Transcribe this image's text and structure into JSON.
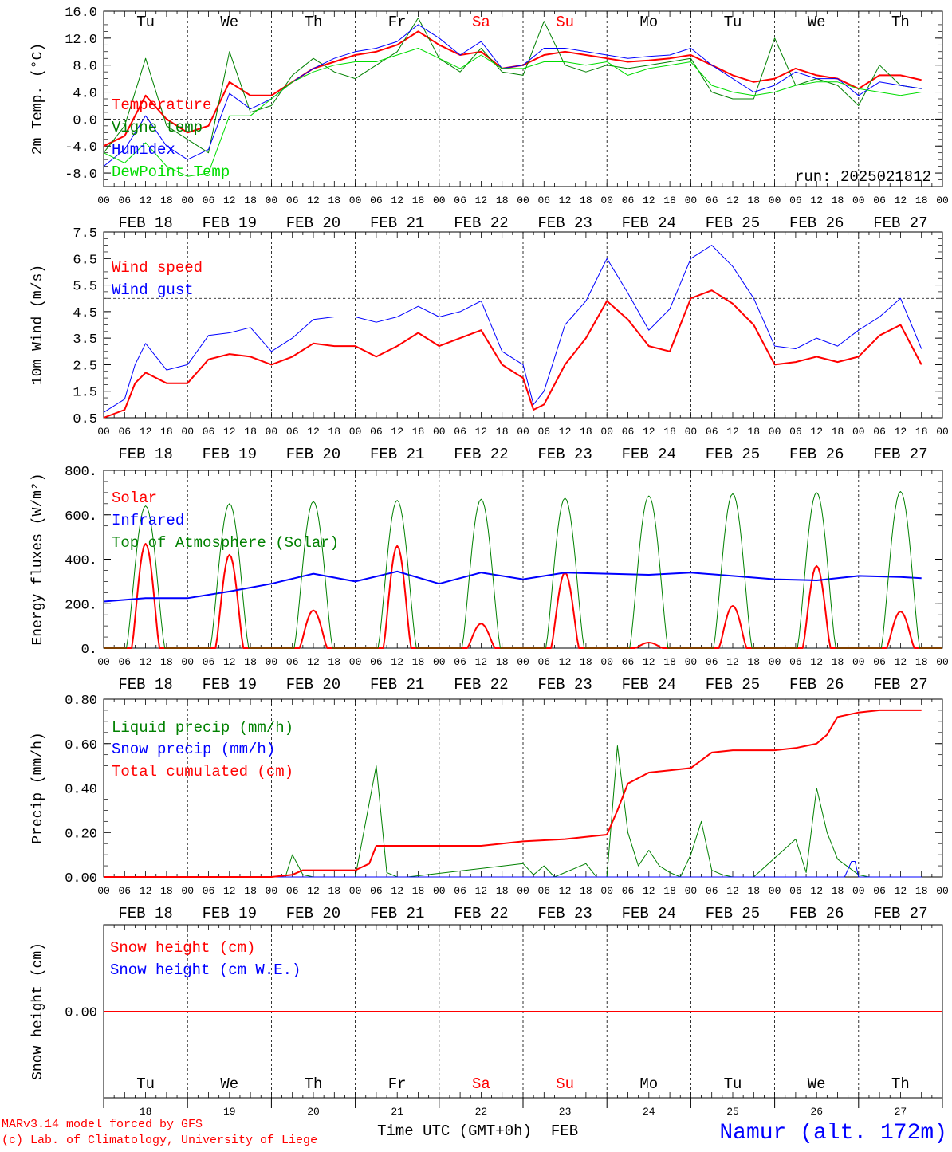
{
  "colors": {
    "red": "#ff0000",
    "green": "#008000",
    "blue": "#0000ff",
    "lime": "#00dd00",
    "grid": "#000000",
    "weekend": "#ff0000"
  },
  "days": [
    {
      "abbr": "Tu",
      "date": "FEB 18",
      "num": "18",
      "weekend": false
    },
    {
      "abbr": "We",
      "date": "FEB 19",
      "num": "19",
      "weekend": false
    },
    {
      "abbr": "Th",
      "date": "FEB 20",
      "num": "20",
      "weekend": false
    },
    {
      "abbr": "Fr",
      "date": "FEB 21",
      "num": "21",
      "weekend": false
    },
    {
      "abbr": "Sa",
      "date": "FEB 22",
      "num": "22",
      "weekend": true
    },
    {
      "abbr": "Su",
      "date": "FEB 23",
      "num": "23",
      "weekend": true
    },
    {
      "abbr": "Mo",
      "date": "FEB 24",
      "num": "24",
      "weekend": false
    },
    {
      "abbr": "Tu",
      "date": "FEB 25",
      "num": "25",
      "weekend": false
    },
    {
      "abbr": "We",
      "date": "FEB 26",
      "num": "26",
      "weekend": false
    },
    {
      "abbr": "Th",
      "date": "FEB 27",
      "num": "27",
      "weekend": false
    }
  ],
  "hour_ticks": [
    "00",
    "06",
    "12",
    "18"
  ],
  "final_hour_tick": "00",
  "run_label": "run: 2025021812",
  "footer": {
    "credit_line1": "MARv3.14 model forced by GFS",
    "credit_line2": "(c) Lab. of Climatology, University of Liege",
    "time_axis_label": "Time UTC (GMT+0h)",
    "month": "FEB",
    "station": "Namur (alt. 172m)"
  },
  "chart_data": [
    {
      "type": "line",
      "ylabel": "2m Temp. (°C)",
      "ylim": [
        -10,
        16
      ],
      "yticks": [
        "16.0",
        "12.0",
        "8.0",
        "4.0",
        "0.0",
        "-4.0",
        "-8.0"
      ],
      "ytick_values": [
        16,
        12,
        8,
        4,
        0,
        -4,
        -8
      ],
      "reference_line": 0,
      "x_unit": "hours since FEB 18 00 UTC",
      "series": [
        {
          "name": "Temperature",
          "color": "#ff0000",
          "width": 2,
          "x": [
            0,
            6,
            12,
            18,
            24,
            30,
            36,
            42,
            48,
            54,
            60,
            66,
            72,
            78,
            84,
            90,
            96,
            102,
            108,
            114,
            120,
            126,
            132,
            138,
            144,
            150,
            156,
            162,
            168,
            174,
            180,
            186,
            192,
            198,
            204,
            210,
            216,
            222,
            228,
            234
          ],
          "y": [
            -4,
            -2.5,
            3.5,
            0,
            -2,
            -1,
            5.5,
            3.5,
            3.5,
            5.5,
            7.5,
            8.5,
            9.5,
            10,
            11,
            13,
            11,
            9.5,
            10,
            7.5,
            8,
            9.5,
            10,
            9.5,
            9,
            8.5,
            8.7,
            9,
            9.5,
            8,
            6.5,
            5.5,
            6,
            7.5,
            6.5,
            6,
            4.5,
            6.5,
            6.5,
            5.8
          ]
        },
        {
          "name": "Vigne temp",
          "color": "#008000",
          "width": 1,
          "x": [
            0,
            6,
            12,
            18,
            24,
            30,
            36,
            42,
            48,
            54,
            60,
            66,
            72,
            78,
            84,
            90,
            96,
            102,
            108,
            114,
            120,
            126,
            132,
            138,
            144,
            150,
            156,
            162,
            168,
            174,
            180,
            186,
            192,
            198,
            204,
            210,
            216,
            222,
            228,
            234
          ],
          "y": [
            -5,
            -1,
            9,
            -1,
            -3,
            -5,
            10,
            1,
            2,
            6.5,
            9,
            7,
            6,
            8,
            10,
            15,
            9,
            7,
            10.5,
            7,
            6.5,
            14.5,
            8,
            7,
            8,
            7.5,
            8,
            8.5,
            9,
            4,
            3,
            3,
            12,
            5,
            6,
            5,
            2,
            8,
            5,
            4.5
          ]
        },
        {
          "name": "Humidex",
          "color": "#0000ff",
          "width": 1,
          "x": [
            0,
            6,
            12,
            18,
            24,
            30,
            36,
            42,
            48,
            54,
            60,
            66,
            72,
            78,
            84,
            90,
            96,
            102,
            108,
            114,
            120,
            126,
            132,
            138,
            144,
            150,
            156,
            162,
            168,
            174,
            180,
            186,
            192,
            198,
            204,
            210,
            216,
            222,
            228,
            234
          ],
          "y": [
            -7,
            -4.5,
            0.5,
            -4,
            -6,
            -4.5,
            3.8,
            1.5,
            3,
            5.5,
            7.5,
            9,
            10,
            10.5,
            11.5,
            14,
            12,
            9.5,
            11.5,
            7.5,
            8,
            10.5,
            10.5,
            10,
            9.5,
            9,
            9.3,
            9.5,
            10.5,
            8,
            6,
            4,
            5,
            7,
            6,
            6,
            3.5,
            5.5,
            5,
            4.5
          ]
        },
        {
          "name": "DewPoint Temp",
          "color": "#00dd00",
          "width": 1,
          "x": [
            0,
            6,
            12,
            18,
            24,
            30,
            36,
            42,
            48,
            54,
            60,
            66,
            72,
            78,
            84,
            90,
            96,
            102,
            108,
            114,
            120,
            126,
            132,
            138,
            144,
            150,
            156,
            162,
            168,
            174,
            180,
            186,
            192,
            198,
            204,
            210,
            216,
            222,
            228,
            234
          ],
          "y": [
            -5,
            -6.5,
            -3.5,
            -7,
            -8.5,
            -8,
            0.5,
            0.5,
            3,
            5.5,
            7,
            8,
            8.5,
            8.5,
            9.5,
            10.5,
            9,
            7.5,
            9.5,
            7.5,
            7.5,
            8.5,
            8.5,
            8,
            8.5,
            6.5,
            7.5,
            8,
            8.5,
            5,
            4,
            3.5,
            4,
            5,
            5.5,
            5.5,
            4.5,
            4,
            3.5,
            4
          ]
        }
      ]
    },
    {
      "type": "line",
      "ylabel": "10m Wind (m/s)",
      "ylim": [
        0.5,
        7.5
      ],
      "yticks": [
        "7.5",
        "6.5",
        "5.5",
        "4.5",
        "3.5",
        "2.5",
        "1.5",
        "0.5"
      ],
      "ytick_values": [
        7.5,
        6.5,
        5.5,
        4.5,
        3.5,
        2.5,
        1.5,
        0.5
      ],
      "reference_line": 5,
      "x_unit": "hours since FEB 18 00 UTC",
      "series": [
        {
          "name": "Wind speed",
          "color": "#ff0000",
          "width": 2,
          "x": [
            0,
            6,
            9,
            12,
            18,
            24,
            30,
            36,
            42,
            48,
            54,
            60,
            66,
            72,
            78,
            84,
            90,
            96,
            102,
            108,
            114,
            120,
            123,
            126,
            132,
            138,
            144,
            150,
            156,
            162,
            168,
            174,
            180,
            186,
            192,
            198,
            204,
            210,
            216,
            222,
            228,
            234
          ],
          "y": [
            0.5,
            0.8,
            1.8,
            2.2,
            1.8,
            1.8,
            2.7,
            2.9,
            2.8,
            2.5,
            2.8,
            3.3,
            3.2,
            3.2,
            2.8,
            3.2,
            3.7,
            3.2,
            3.5,
            3.8,
            2.5,
            2,
            0.8,
            1,
            2.5,
            3.5,
            4.9,
            4.2,
            3.2,
            3,
            5,
            5.3,
            4.8,
            4,
            2.5,
            2.6,
            2.8,
            2.6,
            2.8,
            3.6,
            4,
            2.5
          ]
        },
        {
          "name": "Wind gust",
          "color": "#0000ff",
          "width": 1,
          "x": [
            0,
            6,
            9,
            12,
            18,
            24,
            30,
            36,
            42,
            48,
            54,
            60,
            66,
            72,
            78,
            84,
            90,
            96,
            102,
            108,
            114,
            120,
            123,
            126,
            132,
            138,
            144,
            150,
            156,
            162,
            168,
            174,
            180,
            186,
            192,
            198,
            204,
            210,
            216,
            222,
            228,
            234
          ],
          "y": [
            0.7,
            1.2,
            2.5,
            3.3,
            2.3,
            2.5,
            3.6,
            3.7,
            3.9,
            3,
            3.5,
            4.2,
            4.3,
            4.3,
            4.1,
            4.3,
            4.7,
            4.3,
            4.5,
            4.9,
            3,
            2.5,
            1,
            1.5,
            4,
            4.9,
            6.5,
            5.2,
            3.8,
            4.6,
            6.5,
            7,
            6.2,
            5,
            3.2,
            3.1,
            3.5,
            3.2,
            3.8,
            4.3,
            5,
            3.1
          ]
        }
      ]
    },
    {
      "type": "line",
      "ylabel": "Energy fluxes (W/m²)",
      "ylim": [
        0,
        800
      ],
      "yticks": [
        "800.",
        "600.",
        "400.",
        "200.",
        "0."
      ],
      "ytick_values": [
        800,
        600,
        400,
        200,
        0
      ],
      "x_unit": "hours since FEB 18 00 UTC",
      "series": [
        {
          "name": "Solar",
          "color": "#ff0000",
          "width": 2,
          "day_peaks": [
            470,
            420,
            170,
            460,
            110,
            340,
            25,
            190,
            370,
            165
          ]
        },
        {
          "name": "Infrared",
          "color": "#0000ff",
          "width": 2,
          "x": [
            0,
            12,
            24,
            36,
            48,
            60,
            72,
            84,
            96,
            108,
            120,
            132,
            144,
            156,
            168,
            180,
            192,
            204,
            216,
            228,
            234
          ],
          "y": [
            210,
            225,
            225,
            255,
            290,
            335,
            300,
            345,
            290,
            340,
            310,
            340,
            335,
            330,
            340,
            325,
            310,
            305,
            325,
            320,
            315
          ]
        },
        {
          "name": "Top of Atmosphere (Solar)",
          "color": "#008000",
          "width": 1,
          "day_peaks": [
            640,
            650,
            660,
            665,
            670,
            675,
            685,
            695,
            700,
            705
          ]
        }
      ]
    },
    {
      "type": "line",
      "ylabel": "Precip (mm/h)",
      "ylim": [
        0,
        0.8
      ],
      "yticks": [
        "0.80",
        "0.60",
        "0.40",
        "0.20",
        "0.00"
      ],
      "ytick_values": [
        0.8,
        0.6,
        0.4,
        0.2,
        0
      ],
      "x_unit": "hours since FEB 18 00 UTC",
      "series": [
        {
          "name": "Liquid precip (mm/h)",
          "color": "#008000",
          "width": 1,
          "x": [
            0,
            48,
            52,
            54,
            57,
            60,
            66,
            72,
            78,
            81,
            84,
            87,
            120,
            123,
            126,
            129,
            138,
            141,
            144,
            147,
            150,
            153,
            156,
            159,
            162,
            165,
            168,
            171,
            174,
            177,
            180,
            186,
            198,
            201,
            204,
            207,
            210,
            216,
            219
          ],
          "y": [
            0,
            0,
            0,
            0.1,
            0.01,
            0,
            0,
            0,
            0.5,
            0.02,
            0,
            0,
            0.06,
            0.01,
            0.05,
            0,
            0.06,
            0,
            0,
            0.59,
            0.2,
            0.05,
            0.12,
            0.05,
            0.02,
            0,
            0.1,
            0.25,
            0.03,
            0.01,
            0,
            0,
            0.17,
            0.02,
            0.4,
            0.2,
            0.08,
            0.01,
            0
          ]
        },
        {
          "name": "Snow precip (mm/h)",
          "color": "#0000ff",
          "width": 1,
          "x": [
            0,
            212,
            214,
            215,
            216,
            234
          ],
          "y": [
            0,
            0,
            0.07,
            0.07,
            0,
            0
          ]
        },
        {
          "name": "Total cumulated (cm)",
          "color": "#ff0000",
          "width": 2,
          "x": [
            0,
            48,
            54,
            57,
            72,
            76,
            78,
            84,
            96,
            108,
            114,
            120,
            132,
            138,
            144,
            147,
            150,
            156,
            162,
            168,
            174,
            180,
            192,
            198,
            204,
            207,
            210,
            216,
            222,
            228,
            234
          ],
          "y": [
            0,
            0,
            0.01,
            0.03,
            0.03,
            0.06,
            0.14,
            0.14,
            0.14,
            0.14,
            0.15,
            0.16,
            0.17,
            0.18,
            0.19,
            0.3,
            0.42,
            0.47,
            0.48,
            0.49,
            0.56,
            0.57,
            0.57,
            0.58,
            0.6,
            0.64,
            0.72,
            0.74,
            0.75,
            0.75,
            0.75
          ]
        }
      ]
    },
    {
      "type": "line",
      "ylabel": "Snow height (cm)",
      "ylim": [
        -1,
        1
      ],
      "yticks": [
        "0.00"
      ],
      "ytick_values": [
        0
      ],
      "x_unit": "hours since FEB 18 00 UTC",
      "series": [
        {
          "name": "Snow height (cm)",
          "color": "#ff0000",
          "width": 1,
          "x": [
            0,
            240
          ],
          "y": [
            0,
            0
          ]
        },
        {
          "name": "Snow height (cm W.E.)",
          "color": "#0000ff",
          "width": 1,
          "x": [],
          "y": []
        }
      ]
    }
  ]
}
